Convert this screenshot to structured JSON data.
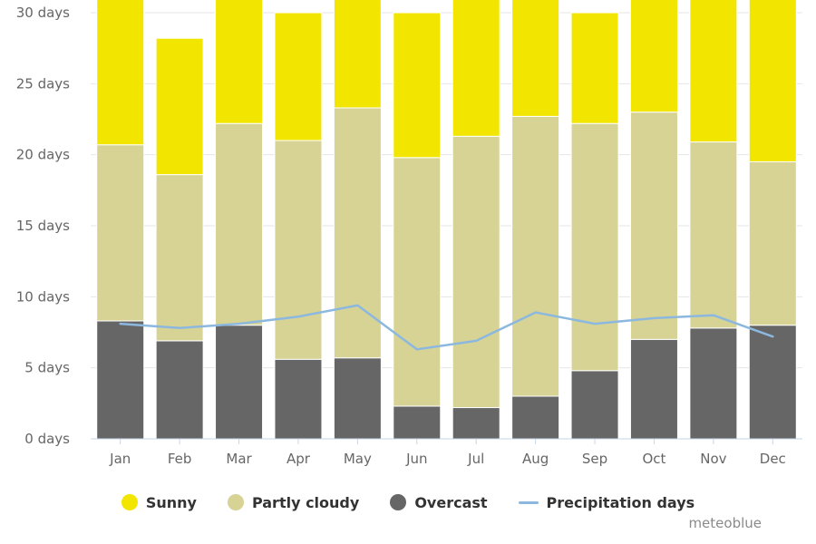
{
  "colors": {
    "sunny": "#f2e600",
    "partly_cloudy": "#d6d394",
    "overcast": "#666666",
    "precipitation": "#8cb8e0",
    "grid": "#e6e6e6",
    "axis": "#c8d6e6"
  },
  "chart_data": {
    "type": "bar",
    "stacked": true,
    "categories": [
      "Jan",
      "Feb",
      "Mar",
      "Apr",
      "May",
      "Jun",
      "Jul",
      "Aug",
      "Sep",
      "Oct",
      "Nov",
      "Dec"
    ],
    "y_ticks": [
      "0 days",
      "5 days",
      "10 days",
      "15 days",
      "20 days",
      "25 days",
      "30 days"
    ],
    "ylim": [
      0,
      30
    ],
    "grid": true,
    "legend_position": "bottom",
    "series": [
      {
        "name": "Overcast",
        "values": [
          8.3,
          6.9,
          8.0,
          5.6,
          5.7,
          2.3,
          2.2,
          3.0,
          4.8,
          7.0,
          7.8,
          8.0
        ]
      },
      {
        "name": "Partly cloudy",
        "values": [
          12.4,
          11.7,
          14.2,
          15.4,
          17.6,
          17.5,
          19.1,
          19.7,
          17.4,
          16.0,
          13.1,
          11.5
        ]
      },
      {
        "name": "Sunny",
        "values": [
          10.3,
          9.6,
          8.8,
          9.0,
          7.7,
          10.2,
          9.7,
          8.3,
          7.8,
          8.0,
          10.1,
          11.5
        ]
      }
    ],
    "line_series": {
      "name": "Precipitation days",
      "values": [
        8.1,
        7.8,
        8.1,
        8.6,
        9.4,
        6.3,
        6.9,
        8.9,
        8.1,
        8.5,
        8.7,
        7.2
      ]
    }
  },
  "legend": {
    "sunny": "Sunny",
    "partly_cloudy": "Partly cloudy",
    "overcast": "Overcast",
    "precipitation": "Precipitation days"
  },
  "credit": "meteoblue"
}
